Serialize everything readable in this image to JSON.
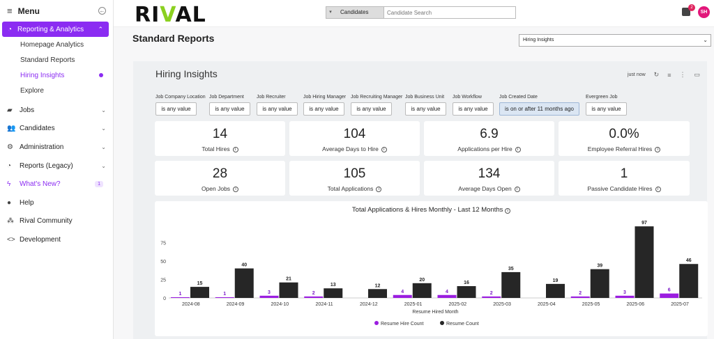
{
  "sidebar": {
    "menu_label": "Menu",
    "active_section": "Reporting & Analytics",
    "sub_items": [
      "Homepage Analytics",
      "Standard Reports",
      "Hiring Insights",
      "Explore"
    ],
    "items": [
      {
        "label": "Jobs",
        "icon": "briefcase-icon"
      },
      {
        "label": "Candidates",
        "icon": "people-icon"
      },
      {
        "label": "Administration",
        "icon": "gear-icon"
      },
      {
        "label": "Reports (Legacy)",
        "icon": "pie-icon"
      },
      {
        "label": "What's New?",
        "icon": "bolt-icon",
        "badge": "1"
      },
      {
        "label": "Help",
        "icon": "help-icon"
      },
      {
        "label": "Rival Community",
        "icon": "community-icon"
      },
      {
        "label": "Development",
        "icon": "code-icon"
      }
    ]
  },
  "topbar": {
    "logo": "RIVAL",
    "search_category": "Candidates",
    "search_placeholder": "Candidate Search",
    "notification_count": "2",
    "avatar_initials": "SH"
  },
  "page": {
    "title": "Standard Reports",
    "report_select": "Hiring Insights"
  },
  "panel": {
    "title": "Hiring Insights",
    "refresh_text": "just now",
    "filters": [
      {
        "label": "Job Company Location",
        "value": "is any value"
      },
      {
        "label": "Job Department",
        "value": "is any value"
      },
      {
        "label": "Job Recruiter",
        "value": "is any value"
      },
      {
        "label": "Job Hiring Manager",
        "value": "is any value"
      },
      {
        "label": "Job Recruiting Manager",
        "value": "is any value"
      },
      {
        "label": "Job Business Unit",
        "value": "is any value"
      },
      {
        "label": "Job Workflow",
        "value": "is any value"
      },
      {
        "label": "Job Created Date",
        "value": "is on or after 11 months ago"
      },
      {
        "label": "Evergreen Job",
        "value": "is any value"
      }
    ],
    "metrics": [
      {
        "value": "14",
        "label": "Total Hires"
      },
      {
        "value": "104",
        "label": "Average Days to Hire"
      },
      {
        "value": "6.9",
        "label": "Applications per Hire"
      },
      {
        "value": "0.0%",
        "label": "Employee Referral Hires"
      },
      {
        "value": "28",
        "label": "Open Jobs"
      },
      {
        "value": "105",
        "label": "Total Applications"
      },
      {
        "value": "134",
        "label": "Average Days Open"
      },
      {
        "value": "1",
        "label": "Passive Candidate Hires"
      }
    ]
  },
  "chart_data": {
    "type": "bar",
    "title": "Total Applications & Hires Monthly - Last 12 Months",
    "xlabel": "Resume Hired Month",
    "categories": [
      "2024-08",
      "2024-09",
      "2024-10",
      "2024-11",
      "2024-12",
      "2025-01",
      "2025-02",
      "2025-03",
      "2025-04",
      "2025-05",
      "2025-06",
      "2025-07"
    ],
    "series": [
      {
        "name": "Resume Hire Count",
        "color": "#9b1de0",
        "values": [
          1,
          1,
          3,
          2,
          null,
          4,
          4,
          2,
          null,
          2,
          3,
          6
        ]
      },
      {
        "name": "Resume Count",
        "color": "#262626",
        "values": [
          15,
          40,
          21,
          13,
          12,
          20,
          16,
          35,
          19,
          39,
          97,
          46
        ]
      }
    ],
    "yticks": [
      0,
      25,
      50,
      75
    ],
    "ylim": [
      0,
      100
    ]
  }
}
